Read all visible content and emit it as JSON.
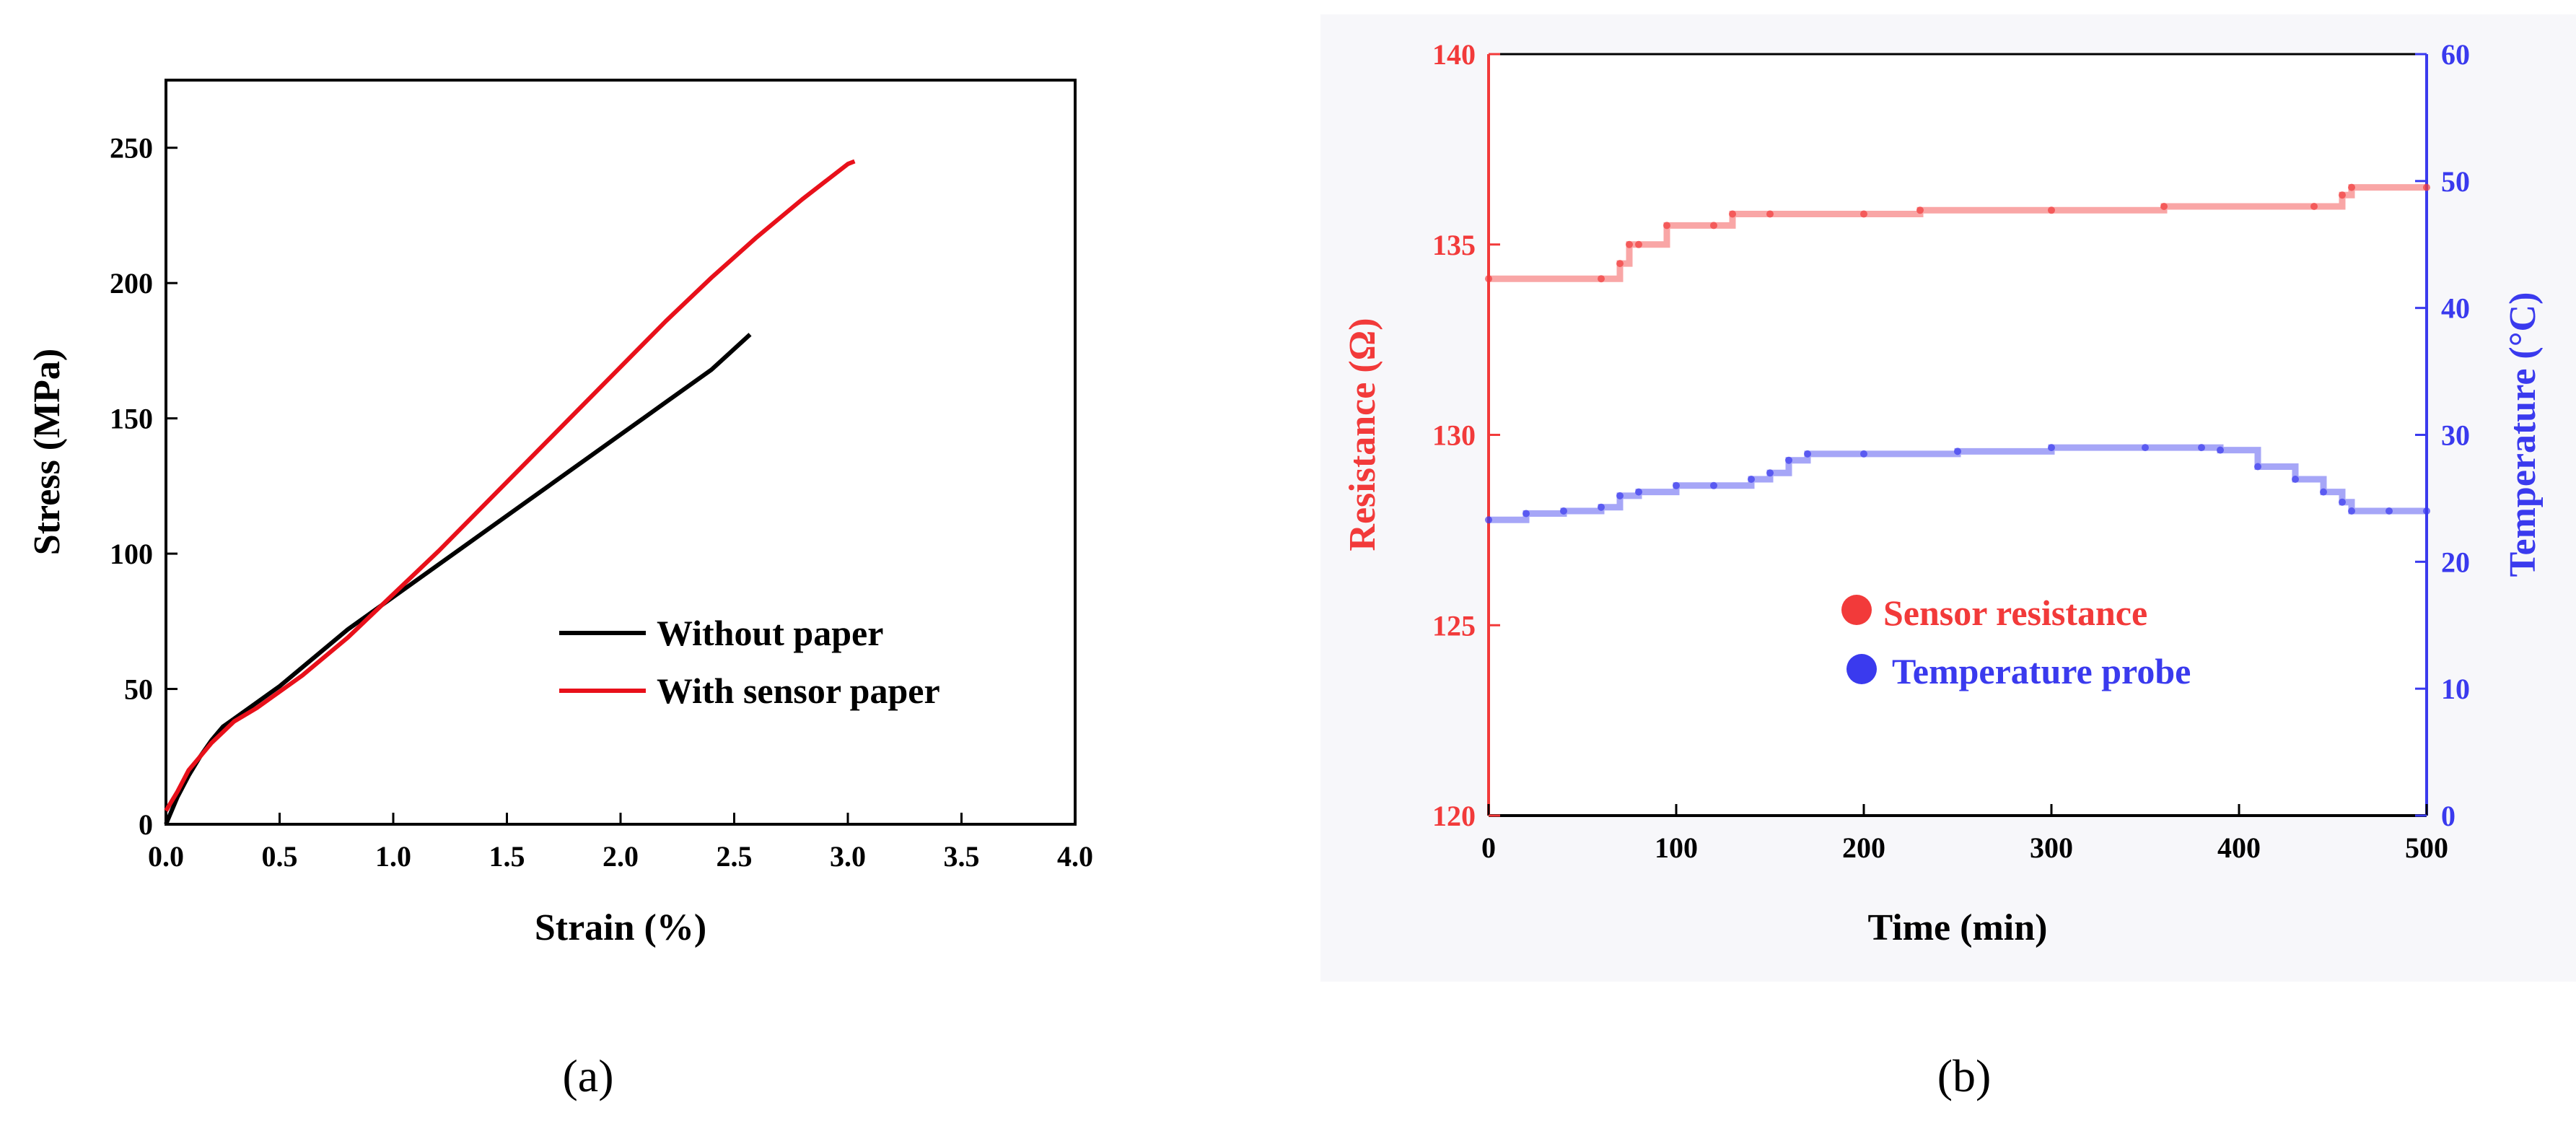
{
  "chart_data": [
    {
      "type": "line",
      "panel_label": "(a)",
      "xlabel": "Strain (%)",
      "ylabel": "Stress (MPa)",
      "xlim": [
        0,
        4.0
      ],
      "ylim": [
        0,
        275
      ],
      "xticks": [
        "0.0",
        "0.5",
        "1.0",
        "1.5",
        "2.0",
        "2.5",
        "3.0",
        "3.5",
        "4.0"
      ],
      "yticks": [
        "0",
        "50",
        "100",
        "150",
        "200",
        "250"
      ],
      "grid": false,
      "legend": "center-right",
      "series": [
        {
          "name": "Without paper",
          "color": "#000000",
          "x": [
            0,
            0.05,
            0.1,
            0.15,
            0.2,
            0.25,
            0.3,
            0.4,
            0.5,
            0.6,
            0.7,
            0.8,
            0.9,
            1.0,
            1.2,
            1.4,
            1.6,
            1.8,
            2.0,
            2.2,
            2.4,
            2.57
          ],
          "y": [
            0,
            10,
            18,
            25,
            31,
            36,
            39,
            45,
            51,
            58,
            65,
            72,
            78,
            84,
            96,
            108,
            120,
            132,
            144,
            156,
            168,
            181
          ]
        },
        {
          "name": "With sensor paper",
          "color": "#e8101a",
          "x": [
            0,
            0.05,
            0.1,
            0.15,
            0.2,
            0.25,
            0.3,
            0.4,
            0.5,
            0.6,
            0.7,
            0.8,
            0.9,
            1.0,
            1.2,
            1.4,
            1.6,
            1.8,
            2.0,
            2.2,
            2.4,
            2.6,
            2.8,
            3.0,
            3.03
          ],
          "y": [
            5,
            12,
            20,
            25,
            30,
            34,
            38,
            43,
            49,
            55,
            62,
            69,
            77,
            85,
            101,
            118,
            135,
            152,
            169,
            186,
            202,
            217,
            231,
            244,
            245
          ]
        }
      ]
    },
    {
      "type": "scatter",
      "panel_label": "(b)",
      "xlabel": "Time (min)",
      "ylabel": "Resistance (Ω)",
      "y2label": "Temperature (°C)",
      "xlim": [
        0,
        500
      ],
      "ylim": [
        120,
        140
      ],
      "y2lim": [
        0,
        60
      ],
      "xticks": [
        "0",
        "100",
        "200",
        "300",
        "400",
        "500"
      ],
      "yticks": [
        "120",
        "125",
        "130",
        "135",
        "140"
      ],
      "y2ticks": [
        "0",
        "10",
        "20",
        "30",
        "40",
        "50",
        "60"
      ],
      "grid": false,
      "legend": "center",
      "series": [
        {
          "name": "Sensor resistance",
          "color": "#f23a3a",
          "axis": "left",
          "x": [
            0,
            60,
            70,
            75,
            80,
            95,
            120,
            130,
            150,
            200,
            230,
            300,
            360,
            440,
            455,
            460,
            500
          ],
          "y": [
            134.1,
            134.1,
            134.5,
            135.0,
            135.0,
            135.5,
            135.5,
            135.8,
            135.8,
            135.8,
            135.9,
            135.9,
            136.0,
            136.0,
            136.3,
            136.5,
            136.5
          ]
        },
        {
          "name": "Temperature probe",
          "color": "#3a3aee",
          "axis": "right",
          "x": [
            0,
            20,
            40,
            60,
            70,
            80,
            100,
            120,
            140,
            150,
            160,
            170,
            200,
            250,
            300,
            350,
            380,
            390,
            410,
            430,
            445,
            455,
            460,
            480,
            500
          ],
          "y": [
            23.3,
            23.8,
            24.0,
            24.3,
            25.2,
            25.5,
            26.0,
            26.0,
            26.5,
            27.0,
            28.0,
            28.5,
            28.5,
            28.7,
            29.0,
            29.0,
            29.0,
            28.8,
            27.5,
            26.5,
            25.5,
            24.7,
            24.0,
            24.0,
            24.0
          ]
        }
      ]
    }
  ]
}
